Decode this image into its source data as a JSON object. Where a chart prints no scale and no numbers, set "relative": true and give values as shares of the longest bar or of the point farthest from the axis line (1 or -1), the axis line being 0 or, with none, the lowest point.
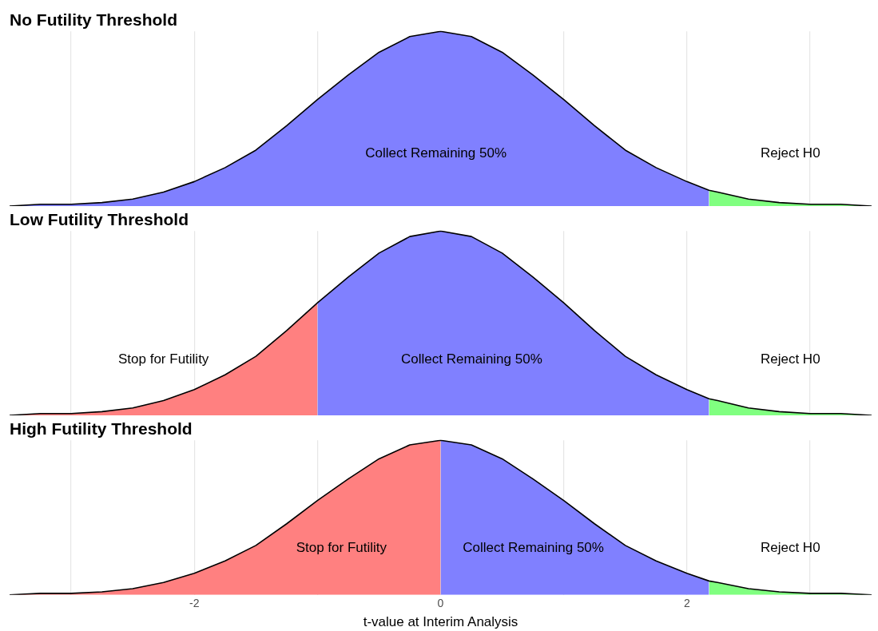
{
  "chart_data": [
    {
      "type": "area",
      "title": "No Futility Threshold",
      "relative": true,
      "xlim": [
        -3.5,
        3.5
      ],
      "xticks": [
        {
          "value": -3,
          "label": null
        },
        -2,
        {
          "value": -1,
          "label": null
        },
        0,
        {
          "value": 1,
          "label": null
        },
        2,
        {
          "value": 3,
          "label": null
        }
      ],
      "grid": "x",
      "tick_labels": false,
      "legend": false,
      "series": [
        {
          "type": "area",
          "color": "#8080ff",
          "x": [
            -3.5,
            -3.25,
            -3,
            -2.75,
            -2.5,
            -2.25,
            -2,
            -1.75,
            -1.5,
            -1.25,
            -1,
            -0.75,
            -0.5,
            -0.25,
            0,
            0.25,
            0.5,
            0.75,
            1,
            1.25,
            1.5,
            1.75,
            2,
            2.18
          ],
          "values": [
            0,
            0.01,
            0.01,
            0.02,
            0.04,
            0.08,
            0.14,
            0.22,
            0.32,
            0.46,
            0.61,
            0.75,
            0.88,
            0.97,
            1,
            0.97,
            0.88,
            0.75,
            0.61,
            0.46,
            0.32,
            0.22,
            0.14,
            0.09
          ]
        },
        {
          "type": "area",
          "color": "#80ff80",
          "x": [
            2.18,
            2.25,
            2.5,
            2.75,
            3,
            3.25,
            3.5
          ],
          "values": [
            0.09,
            0.08,
            0.04,
            0.02,
            0.01,
            0.01,
            0
          ]
        },
        {
          "type": "line",
          "color": "#000000",
          "x": [
            -3.5,
            -3.25,
            -3,
            -2.75,
            -2.5,
            -2.25,
            -2,
            -1.75,
            -1.5,
            -1.25,
            -1,
            -0.75,
            -0.5,
            -0.25,
            0,
            0.25,
            0.5,
            0.75,
            1,
            1.25,
            1.5,
            1.75,
            2,
            2.18,
            2.25,
            2.5,
            2.75,
            3,
            3.25,
            3.5
          ],
          "values": [
            0,
            0.01,
            0.01,
            0.02,
            0.04,
            0.08,
            0.14,
            0.22,
            0.32,
            0.46,
            0.61,
            0.75,
            0.88,
            0.97,
            1,
            0.97,
            0.88,
            0.75,
            0.61,
            0.46,
            0.32,
            0.22,
            0.14,
            0.09,
            0.08,
            0.04,
            0.02,
            0.01,
            0.01,
            0
          ]
        }
      ],
      "annotations": [
        "Collect Remaining 50%",
        "Reject H0"
      ]
    },
    {
      "type": "area",
      "title": "Low Futility Threshold",
      "relative": true,
      "xlim": [
        -3.5,
        3.5
      ],
      "xticks": [
        {
          "value": -3,
          "label": null
        },
        -2,
        {
          "value": -1,
          "label": null
        },
        0,
        {
          "value": 1,
          "label": null
        },
        2,
        {
          "value": 3,
          "label": null
        }
      ],
      "grid": "x",
      "tick_labels": false,
      "legend": false,
      "series": [
        {
          "type": "area",
          "color": "#ff8080",
          "x": [
            -3.5,
            -3.25,
            -3,
            -2.75,
            -2.5,
            -2.25,
            -2,
            -1.75,
            -1.5,
            -1.25,
            -1
          ],
          "values": [
            0,
            0.01,
            0.01,
            0.02,
            0.04,
            0.08,
            0.14,
            0.22,
            0.32,
            0.46,
            0.61
          ]
        },
        {
          "type": "area",
          "color": "#8080ff",
          "x": [
            -1,
            -0.75,
            -0.5,
            -0.25,
            0,
            0.25,
            0.5,
            0.75,
            1,
            1.25,
            1.5,
            1.75,
            2,
            2.18
          ],
          "values": [
            0.61,
            0.75,
            0.88,
            0.97,
            1,
            0.97,
            0.88,
            0.75,
            0.61,
            0.46,
            0.32,
            0.22,
            0.14,
            0.09
          ]
        },
        {
          "type": "area",
          "color": "#80ff80",
          "x": [
            2.18,
            2.25,
            2.5,
            2.75,
            3,
            3.25,
            3.5
          ],
          "values": [
            0.09,
            0.08,
            0.04,
            0.02,
            0.01,
            0.01,
            0
          ]
        },
        {
          "type": "line",
          "color": "#000000",
          "x": [
            -3.5,
            -3.25,
            -3,
            -2.75,
            -2.5,
            -2.25,
            -2,
            -1.75,
            -1.5,
            -1.25,
            -1,
            -0.75,
            -0.5,
            -0.25,
            0,
            0.25,
            0.5,
            0.75,
            1,
            1.25,
            1.5,
            1.75,
            2,
            2.18,
            2.25,
            2.5,
            2.75,
            3,
            3.25,
            3.5
          ],
          "values": [
            0,
            0.01,
            0.01,
            0.02,
            0.04,
            0.08,
            0.14,
            0.22,
            0.32,
            0.46,
            0.61,
            0.75,
            0.88,
            0.97,
            1,
            0.97,
            0.88,
            0.75,
            0.61,
            0.46,
            0.32,
            0.22,
            0.14,
            0.09,
            0.08,
            0.04,
            0.02,
            0.01,
            0.01,
            0
          ]
        }
      ],
      "annotations": [
        "Stop for Futility",
        "Collect Remaining 50%",
        "Reject H0"
      ]
    },
    {
      "type": "area",
      "title": "High Futility Threshold",
      "relative": true,
      "xlabel": "t-value at Interim Analysis",
      "xlim": [
        -3.5,
        3.5
      ],
      "xticks": [
        {
          "value": -3,
          "label": null
        },
        -2,
        {
          "value": -1,
          "label": null
        },
        0,
        {
          "value": 1,
          "label": null
        },
        2,
        {
          "value": 3,
          "label": null
        }
      ],
      "grid": "x",
      "tick_labels": "x",
      "legend": false,
      "series": [
        {
          "type": "area",
          "color": "#ff8080",
          "x": [
            -3.5,
            -3.25,
            -3,
            -2.75,
            -2.5,
            -2.25,
            -2,
            -1.75,
            -1.5,
            -1.25,
            -1,
            -0.75,
            -0.5,
            -0.25,
            0
          ],
          "values": [
            0,
            0.01,
            0.01,
            0.02,
            0.04,
            0.08,
            0.14,
            0.22,
            0.32,
            0.46,
            0.61,
            0.75,
            0.88,
            0.97,
            1
          ]
        },
        {
          "type": "area",
          "color": "#8080ff",
          "x": [
            0,
            0.25,
            0.5,
            0.75,
            1,
            1.25,
            1.5,
            1.75,
            2,
            2.18
          ],
          "values": [
            1,
            0.97,
            0.88,
            0.75,
            0.61,
            0.46,
            0.32,
            0.22,
            0.14,
            0.09
          ]
        },
        {
          "type": "area",
          "color": "#80ff80",
          "x": [
            2.18,
            2.25,
            2.5,
            2.75,
            3,
            3.25,
            3.5
          ],
          "values": [
            0.09,
            0.08,
            0.04,
            0.02,
            0.01,
            0.01,
            0
          ]
        },
        {
          "type": "line",
          "color": "#000000",
          "x": [
            -3.5,
            -3.25,
            -3,
            -2.75,
            -2.5,
            -2.25,
            -2,
            -1.75,
            -1.5,
            -1.25,
            -1,
            -0.75,
            -0.5,
            -0.25,
            0,
            0.25,
            0.5,
            0.75,
            1,
            1.25,
            1.5,
            1.75,
            2,
            2.18,
            2.25,
            2.5,
            2.75,
            3,
            3.25,
            3.5
          ],
          "values": [
            0,
            0.01,
            0.01,
            0.02,
            0.04,
            0.08,
            0.14,
            0.22,
            0.32,
            0.46,
            0.61,
            0.75,
            0.88,
            0.97,
            1,
            0.97,
            0.88,
            0.75,
            0.61,
            0.46,
            0.32,
            0.22,
            0.14,
            0.09,
            0.08,
            0.04,
            0.02,
            0.01,
            0.01,
            0
          ]
        }
      ],
      "annotations": [
        "Stop for Futility",
        "Collect Remaining 50%",
        "Reject H0"
      ]
    }
  ]
}
